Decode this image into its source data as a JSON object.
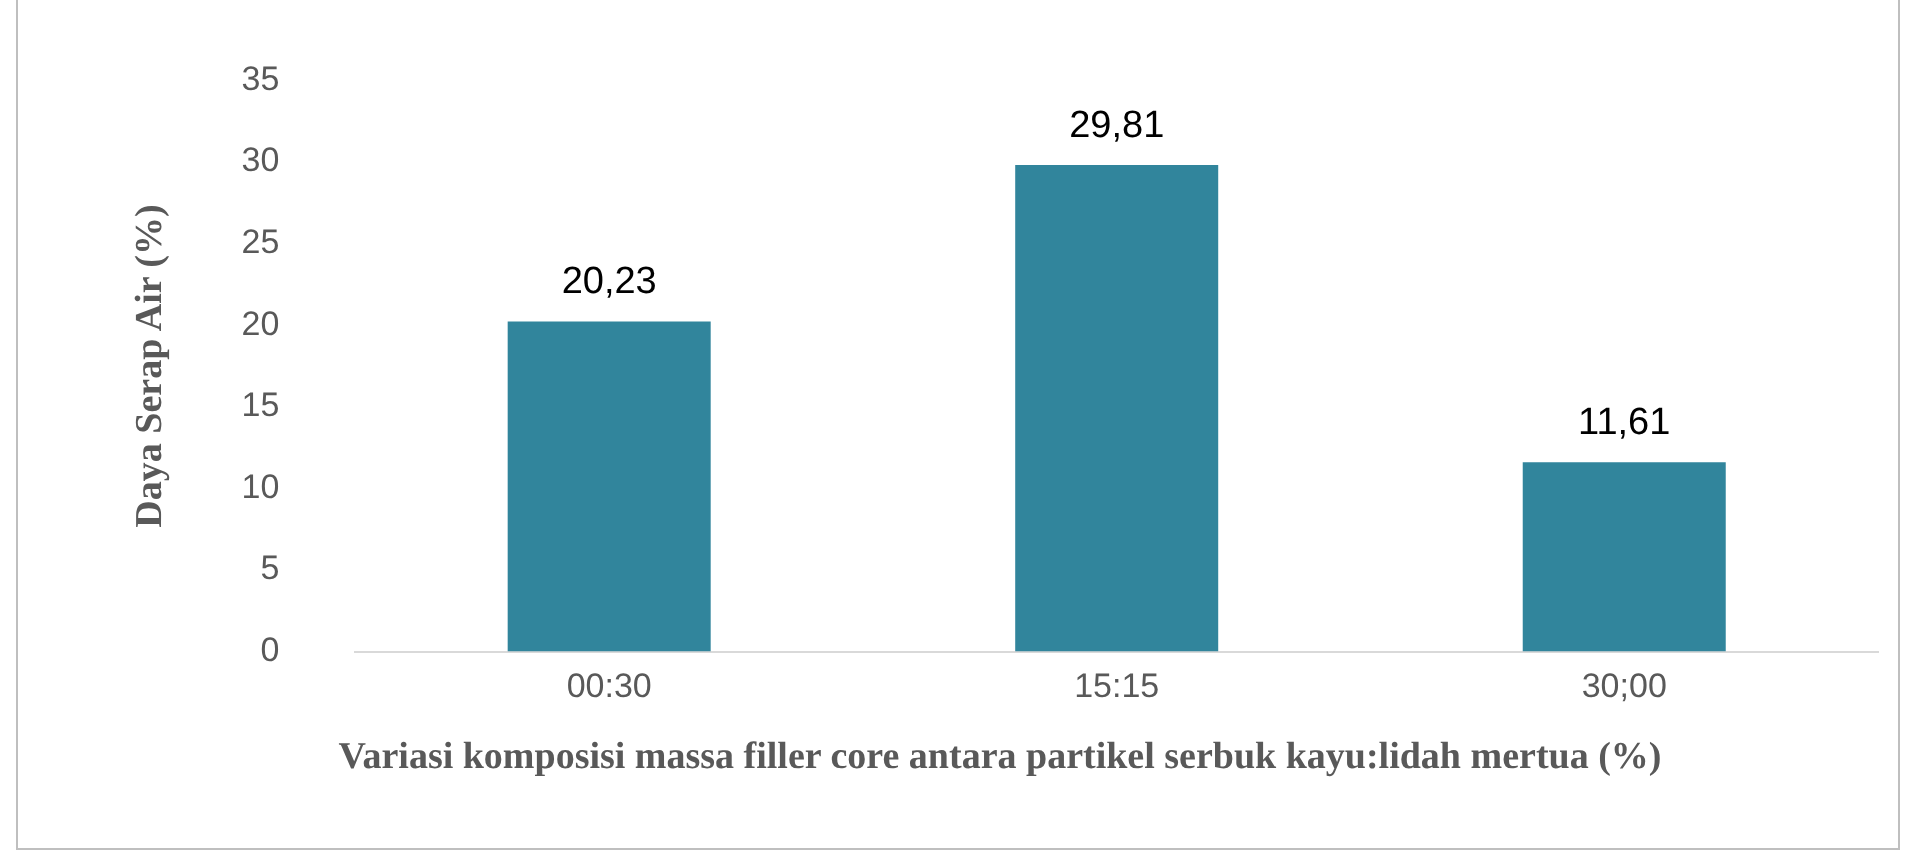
{
  "chart_data": {
    "type": "bar",
    "xlabel": "Variasi komposisi massa filler core antara partikel serbuk kayu:lidah mertua (%)",
    "ylabel": "Daya Serap Air (%)",
    "categories": [
      "00:30",
      "15:15",
      "30;00"
    ],
    "values": [
      20.23,
      29.81,
      11.61
    ],
    "value_labels": [
      "20,23",
      "29,81",
      "11,61"
    ],
    "color": "#31859c",
    "ylim": [
      0,
      35
    ],
    "yticks": [
      0,
      5,
      10,
      15,
      20,
      25,
      30,
      35
    ],
    "grid": false,
    "legend": false
  }
}
